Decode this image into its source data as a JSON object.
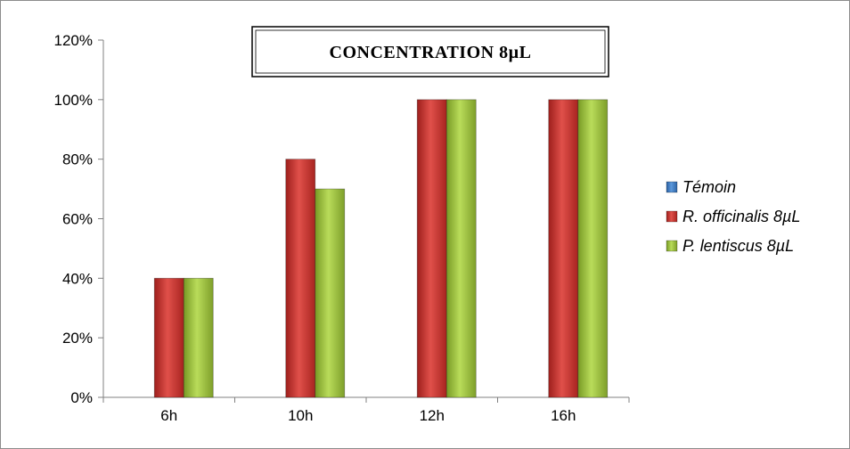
{
  "chart_data": {
    "type": "bar",
    "title": "CONCENTRATION 8µL",
    "categories": [
      "6h",
      "10h",
      "12h",
      "16h"
    ],
    "series": [
      {
        "name": "Témoin",
        "values": [
          0,
          0,
          0,
          0
        ],
        "color": "#3a78c2"
      },
      {
        "name": "R. officinalis 8µL",
        "values": [
          40,
          80,
          100,
          100
        ],
        "color": "#c8302c"
      },
      {
        "name": "P. lentiscus 8µL",
        "values": [
          40,
          70,
          100,
          100
        ],
        "color": "#9bc23c"
      }
    ],
    "y_ticks": [
      "0%",
      "20%",
      "40%",
      "60%",
      "80%",
      "100%",
      "120%"
    ],
    "ylim": [
      0,
      120
    ],
    "xlabel": "",
    "ylabel": "",
    "grid": false,
    "legend_position": "right"
  }
}
